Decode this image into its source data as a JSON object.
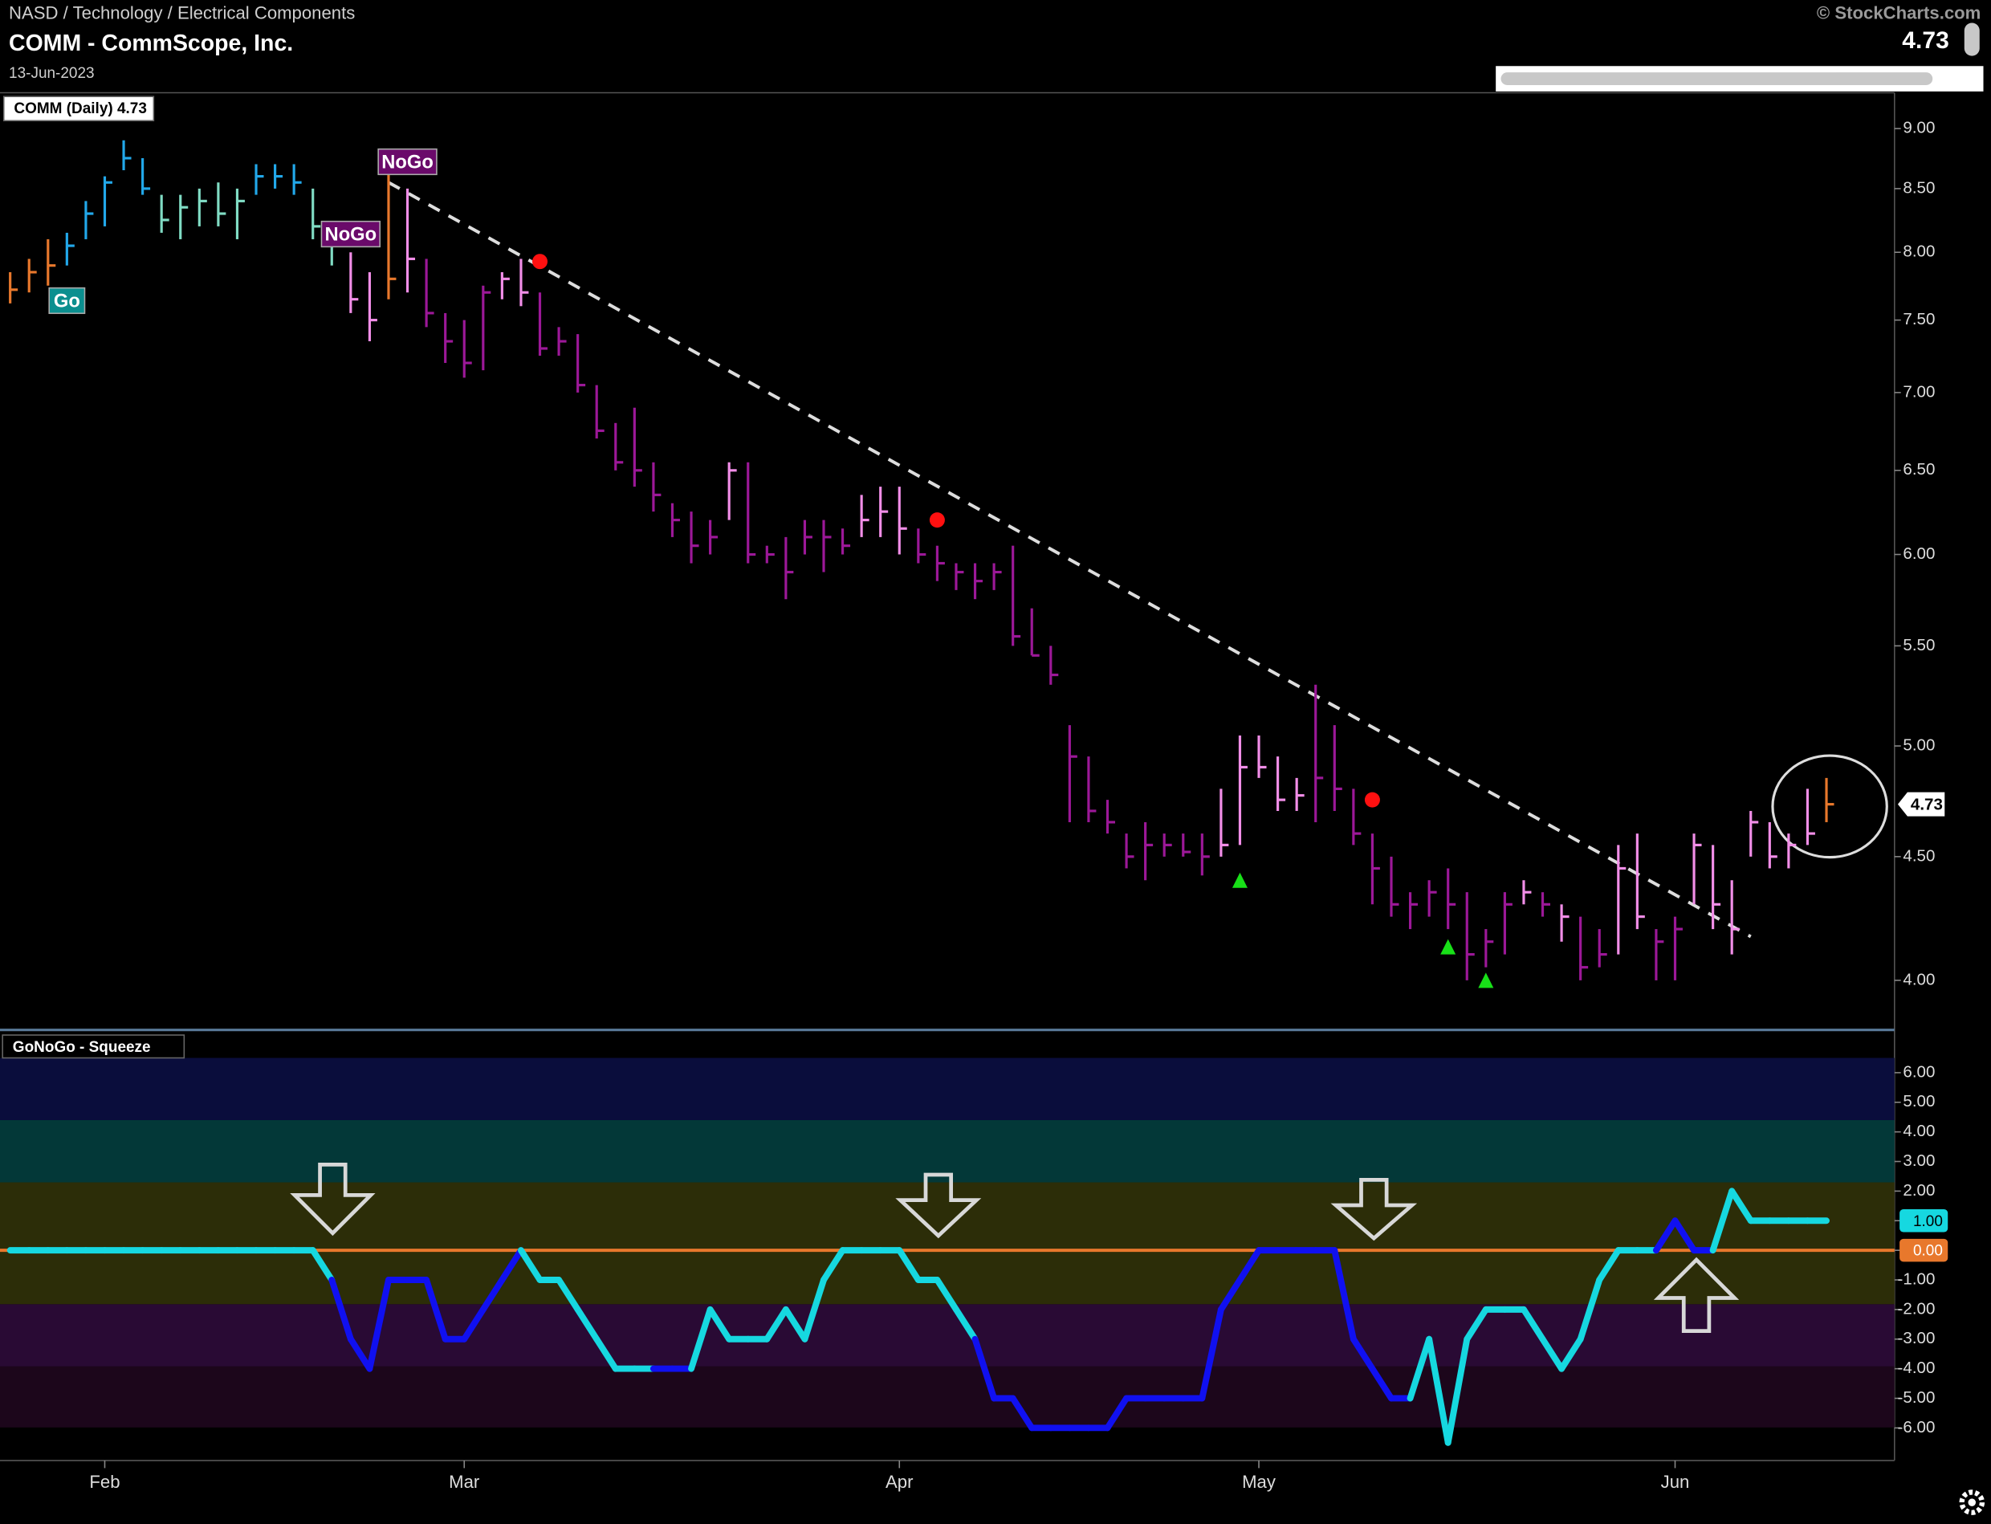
{
  "header": {
    "path": "NASD / Technology / Electrical Components",
    "title": "COMM - CommScope, Inc.",
    "date": "13-Jun-2023",
    "source": "© StockCharts.com",
    "last": {
      "value": 4.73,
      "label": "4.73"
    }
  },
  "chart_data": [
    {
      "type": "hlc",
      "legend": "COMM (Daily) 4.73",
      "log_scale": true,
      "grid": false,
      "ylim": [
        3.82,
        9.29
      ],
      "yticks": [
        {
          "value": 4,
          "label": "4.00"
        },
        {
          "value": 4.5,
          "label": "4.50"
        },
        {
          "value": 5,
          "label": "5.00"
        },
        {
          "value": 5.5,
          "label": "5.50"
        },
        {
          "value": 6,
          "label": "6.00"
        },
        {
          "value": 6.5,
          "label": "6.50"
        },
        {
          "value": 7,
          "label": "7.00"
        },
        {
          "value": 7.5,
          "label": "7.50"
        },
        {
          "value": 8,
          "label": "8.00"
        },
        {
          "value": 8.5,
          "label": "8.50"
        },
        {
          "value": 9,
          "label": "9.00"
        }
      ],
      "categories": [
        null,
        null,
        null,
        null,
        null,
        "Feb",
        null,
        null,
        null,
        null,
        null,
        null,
        null,
        null,
        null,
        null,
        null,
        null,
        null,
        null,
        null,
        null,
        null,
        null,
        "Mar",
        null,
        null,
        null,
        null,
        null,
        null,
        null,
        null,
        null,
        null,
        null,
        null,
        null,
        null,
        null,
        null,
        null,
        null,
        null,
        null,
        null,
        null,
        "Apr",
        null,
        null,
        null,
        null,
        null,
        null,
        null,
        null,
        null,
        null,
        null,
        null,
        null,
        null,
        null,
        null,
        null,
        null,
        "May",
        null,
        null,
        null,
        null,
        null,
        null,
        null,
        null,
        null,
        null,
        null,
        null,
        null,
        null,
        null,
        null,
        null,
        null,
        null,
        null,
        null,
        "Jun",
        null,
        null,
        null,
        null,
        null,
        null,
        null,
        null
      ],
      "high": [
        7.85,
        7.95,
        8.1,
        8.15,
        8.4,
        8.6,
        8.9,
        8.75,
        8.45,
        8.45,
        8.5,
        8.55,
        8.5,
        8.7,
        8.7,
        8.7,
        8.5,
        8.15,
        8.0,
        7.85,
        8.7,
        8.5,
        7.95,
        7.55,
        7.5,
        7.75,
        7.85,
        7.95,
        7.7,
        7.45,
        7.4,
        7.05,
        6.8,
        6.9,
        6.55,
        6.3,
        6.25,
        6.2,
        6.55,
        6.55,
        6.05,
        6.1,
        6.2,
        6.2,
        6.15,
        6.35,
        6.4,
        6.4,
        6.15,
        6.05,
        5.95,
        5.95,
        5.95,
        6.05,
        5.7,
        5.5,
        5.1,
        4.95,
        4.75,
        4.6,
        4.65,
        4.6,
        4.6,
        4.6,
        4.8,
        5.05,
        5.05,
        4.95,
        4.85,
        5.3,
        5.1,
        4.8,
        4.6,
        4.5,
        4.35,
        4.4,
        4.45,
        4.35,
        4.2,
        4.35,
        4.4,
        4.35,
        4.3,
        4.25,
        4.2,
        4.55,
        4.6,
        4.2,
        4.25,
        4.6,
        4.55,
        4.4,
        4.7,
        4.65,
        4.6,
        4.8,
        4.85
      ],
      "low": [
        7.62,
        7.7,
        7.75,
        7.9,
        8.1,
        8.2,
        8.65,
        8.45,
        8.15,
        8.1,
        8.2,
        8.2,
        8.1,
        8.45,
        8.5,
        8.45,
        8.1,
        7.9,
        7.55,
        7.35,
        7.65,
        7.7,
        7.45,
        7.2,
        7.1,
        7.15,
        7.65,
        7.6,
        7.25,
        7.25,
        7.0,
        6.7,
        6.5,
        6.4,
        6.25,
        6.1,
        5.95,
        6.0,
        6.2,
        5.95,
        5.95,
        5.75,
        6.0,
        5.9,
        6.0,
        6.1,
        6.1,
        6.0,
        5.95,
        5.85,
        5.8,
        5.75,
        5.8,
        5.5,
        5.45,
        5.3,
        4.65,
        4.65,
        4.6,
        4.45,
        4.4,
        4.5,
        4.5,
        4.42,
        4.5,
        4.55,
        4.85,
        4.7,
        4.7,
        4.65,
        4.7,
        4.55,
        4.3,
        4.25,
        4.2,
        4.25,
        4.2,
        4.0,
        4.05,
        4.1,
        4.3,
        4.25,
        4.15,
        4.0,
        4.05,
        4.1,
        4.2,
        4.0,
        4.0,
        4.3,
        4.2,
        4.1,
        4.5,
        4.45,
        4.45,
        4.55,
        4.65
      ],
      "close": [
        7.72,
        7.85,
        7.9,
        8.05,
        8.3,
        8.55,
        8.75,
        8.5,
        8.25,
        8.35,
        8.4,
        8.3,
        8.4,
        8.6,
        8.6,
        8.55,
        8.2,
        8.05,
        7.65,
        7.5,
        7.8,
        7.95,
        7.55,
        7.35,
        7.2,
        7.7,
        7.8,
        7.7,
        7.3,
        7.35,
        7.05,
        6.75,
        6.55,
        6.5,
        6.35,
        6.2,
        6.05,
        6.1,
        6.5,
        6.0,
        6.0,
        5.9,
        6.1,
        6.1,
        6.05,
        6.2,
        6.25,
        6.15,
        6.0,
        5.95,
        5.9,
        5.85,
        5.9,
        5.55,
        5.45,
        5.35,
        4.95,
        4.7,
        4.65,
        4.5,
        4.55,
        4.55,
        4.52,
        4.5,
        4.55,
        4.9,
        4.9,
        4.75,
        4.77,
        4.85,
        4.8,
        4.6,
        4.45,
        4.3,
        4.3,
        4.35,
        4.3,
        4.1,
        4.15,
        4.3,
        4.35,
        4.3,
        4.25,
        4.05,
        4.1,
        4.45,
        4.25,
        4.15,
        4.2,
        4.55,
        4.3,
        4.2,
        4.65,
        4.5,
        4.55,
        4.6,
        4.73
      ],
      "palette": {
        "O": "#e8782c",
        "B": "#22a8ea",
        "L": "#80dcc4",
        "P": "#f28ee8",
        "D": "#9c1898"
      },
      "bar_colors": "OOOBBBBBLLLLLBBBLLPPOPDDDDPPDDDDDDDDDDPDDDDDDPPPDDDDDDDDDDDDDDDDPPPPPDDDDDDDDDDDPDPDDPPDDPPPPPPPO",
      "trendline": {
        "start": [
          20,
          8.55
        ],
        "end": [
          92,
          4.17
        ],
        "color": "#dddddd"
      },
      "labels": [
        {
          "text": "Go",
          "index": 3,
          "value": 7.64,
          "color": "#0b8f8f"
        },
        {
          "text": "NoGo",
          "index": 21,
          "value": 8.72,
          "color": "#6a0a6a"
        },
        {
          "text": "NoGo",
          "index": 18,
          "value": 8.14,
          "color": "#6a0a6a"
        }
      ],
      "markers": [
        {
          "shape": "dot",
          "index": 28,
          "value": 7.93,
          "color": "#ff1010"
        },
        {
          "shape": "dot",
          "index": 49,
          "value": 6.2,
          "color": "#ff1010"
        },
        {
          "shape": "dot",
          "index": 72,
          "value": 4.75,
          "color": "#ff1010"
        },
        {
          "shape": "triangle",
          "index": 65,
          "value": 4.4,
          "color": "#18e018"
        },
        {
          "shape": "triangle",
          "index": 76,
          "value": 4.13,
          "color": "#18e018"
        },
        {
          "shape": "triangle",
          "index": 78,
          "value": 4.0,
          "color": "#18e018"
        }
      ]
    },
    {
      "type": "line",
      "legend": "GoNoGo - Squeeze",
      "ylim": [
        -7.1,
        7.4
      ],
      "yticks": [
        {
          "value": -6,
          "label": "-6.00"
        },
        {
          "value": -5,
          "label": "-5.00"
        },
        {
          "value": -4,
          "label": "-4.00"
        },
        {
          "value": -3,
          "label": "-3.00"
        },
        {
          "value": -2,
          "label": "-2.00"
        },
        {
          "value": -1,
          "label": "-1.00"
        },
        {
          "value": 0,
          "label": "0.00"
        },
        {
          "value": 1,
          "label": "1.00"
        },
        {
          "value": 2,
          "label": "2.00"
        },
        {
          "value": 3,
          "label": "3.00"
        },
        {
          "value": 4,
          "label": "4.00"
        },
        {
          "value": 5,
          "label": "5.00"
        },
        {
          "value": 6,
          "label": "6.00"
        }
      ],
      "values": [
        0,
        0,
        0,
        0,
        0,
        0,
        0,
        0,
        0,
        0,
        0,
        0,
        0,
        0,
        0,
        0,
        0,
        -1,
        -3,
        -4,
        -1,
        -1,
        -1,
        -3,
        -3,
        -2,
        -1,
        0,
        -1,
        -1,
        -2,
        -3,
        -4,
        -4,
        -4,
        -4,
        -4,
        -2,
        -3,
        -3,
        -3,
        -2,
        -3,
        -1,
        0,
        0,
        0,
        0,
        -1,
        -1,
        -2,
        -3,
        -5,
        -5,
        -6,
        -6,
        -6,
        -6,
        -6,
        -5,
        -5,
        -5,
        -5,
        -5,
        -2,
        -1,
        0,
        0,
        0,
        0,
        0,
        -3,
        -4,
        -5,
        -5,
        -3,
        -6.5,
        -3,
        -2,
        -2,
        -2,
        -3,
        -4,
        -3,
        -1,
        0,
        0,
        0,
        1,
        0,
        0,
        2,
        1,
        1,
        1,
        1,
        1
      ],
      "palette": {
        "C": "#16d8e0",
        "B": "#1010f0"
      },
      "line_colors": "CCCCCCCCCCCCCCCCCCBBBBBBBBBBCCCCCCCBBCCCCCCCCCCCCCCCBBBBBBBBBBBBBBBBBBBBBBBCCCCCCCCCCCCCBBBCCCCCC",
      "last": {
        "value": 1,
        "label": "1.00"
      },
      "zero": {
        "value": 0,
        "label": "0.00",
        "color": "#e8782c"
      }
    }
  ]
}
